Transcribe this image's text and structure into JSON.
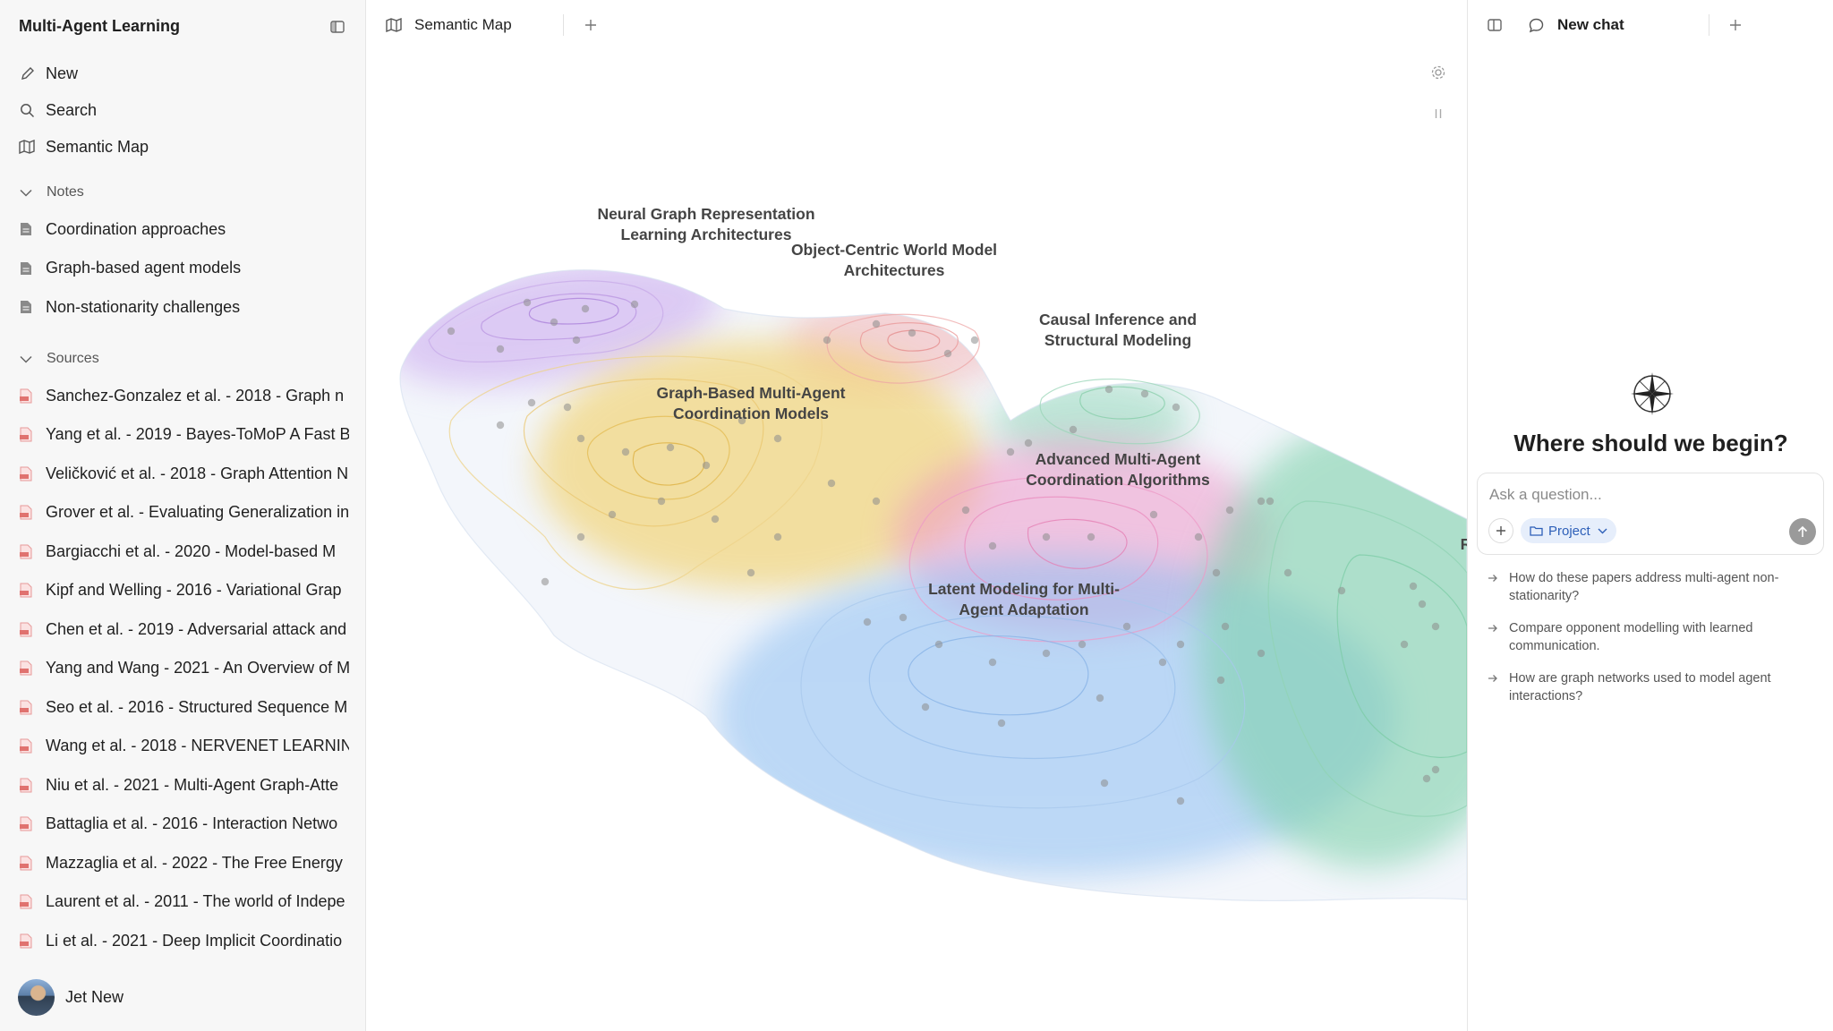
{
  "sidebar": {
    "workspace_title": "Multi-Agent Learning",
    "nav": [
      {
        "label": "New",
        "icon": "edit-icon"
      },
      {
        "label": "Search",
        "icon": "search-icon"
      },
      {
        "label": "Semantic Map",
        "icon": "map-icon"
      }
    ],
    "notes": {
      "heading": "Notes",
      "items": [
        "Coordination approaches",
        "Graph-based agent models",
        "Non-stationarity challenges"
      ]
    },
    "sources": {
      "heading": "Sources",
      "items": [
        "Sanchez-Gonzalez et al. - 2018 - Graph n",
        "Yang et al. - 2019 - Bayes-ToMoP A Fast B",
        "Veličković et al. - 2018 - Graph Attention N",
        "Grover et al. - Evaluating Generalization in",
        "Bargiacchi et al. - 2020 - Model-based M",
        "Kipf and Welling - 2016 - Variational Grap",
        "Chen et al. - 2019 - Adversarial attack and",
        "Yang and Wang - 2021 - An Overview of M",
        "Seo et al. - 2016 - Structured Sequence M",
        "Wang et al. - 2018 - NERVENET LEARNING",
        "Niu et al. - 2021 - Multi-Agent Graph-Atte",
        "Battaglia et al. - 2016 - Interaction Netwo",
        "Mazzaglia et al. - 2022 - The Free Energy",
        "Laurent et al. - 2011 - The world of Indepe",
        "Li et al. - 2021 - Deep Implicit Coordinatio"
      ]
    },
    "user": {
      "name": "Jet New"
    }
  },
  "main": {
    "tab_label": "Semantic Map",
    "clusters": [
      {
        "line1": "Neural Graph Representation",
        "line2": "Learning Architectures"
      },
      {
        "line1": "Object-Centric World Model",
        "line2": "Architectures"
      },
      {
        "line1": "Causal Inference and",
        "line2": "Structural Modeling"
      },
      {
        "line1": "Graph-Based Multi-Agent",
        "line2": "Coordination Models"
      },
      {
        "line1": "Advanced Multi-Agent",
        "line2": "Coordination Algorithms"
      },
      {
        "line1": "Latent Modeling for Multi-",
        "line2": "Agent Adaptation"
      },
      {
        "line1": "R",
        "line2": ""
      }
    ],
    "colors": {
      "purple": "#c9a6ee",
      "red": "#f4a7a7",
      "yellow": "#f2cf63",
      "green": "#7fd1ac",
      "pink": "#ee91c6",
      "blue": "#8ebff2"
    }
  },
  "chat": {
    "tab_label": "New chat",
    "heading": "Where should we begin?",
    "input_placeholder": "Ask a question...",
    "project_label": "Project",
    "suggestions": [
      {
        "line1": "How do these papers address multi-agent non-",
        "line2": "stationarity?"
      },
      {
        "line1": "Compare opponent modelling with learned",
        "line2": "communication."
      },
      {
        "line1": "How are graph networks used to model agent",
        "line2": "interactions?"
      }
    ]
  }
}
